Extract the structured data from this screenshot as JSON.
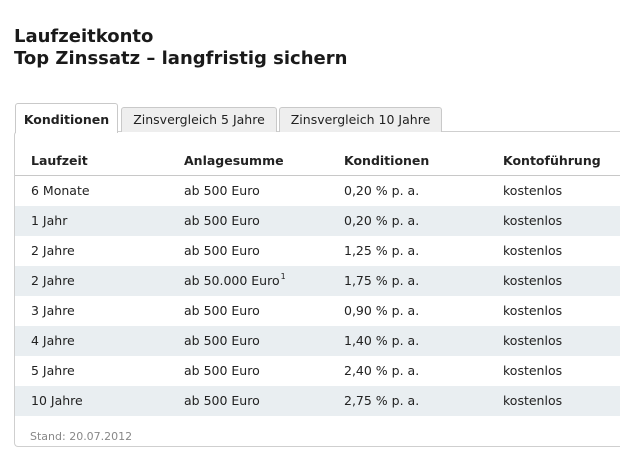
{
  "heading": {
    "line1": "Laufzeitkonto",
    "line2": "Top Zinssatz – langfristig sichern"
  },
  "tabs": [
    {
      "label": "Konditionen",
      "active": true
    },
    {
      "label": "Zinsvergleich 5 Jahre",
      "active": false
    },
    {
      "label": "Zinsvergleich 10 Jahre",
      "active": false
    }
  ],
  "table": {
    "columns": [
      "Laufzeit",
      "Anlagesumme",
      "Konditionen",
      "Kontoführung"
    ],
    "rows": [
      [
        "6 Monate",
        "ab 500 Euro",
        "0,20 % p. a.",
        "kostenlos"
      ],
      [
        "1 Jahr",
        "ab 500 Euro",
        "0,20 % p. a.",
        "kostenlos"
      ],
      [
        "2 Jahre",
        "ab 500 Euro",
        "1,25 % p. a.",
        "kostenlos"
      ],
      [
        "2 Jahre",
        "ab 50.000 Euro",
        "1,75 % p. a.",
        "kostenlos"
      ],
      [
        "3 Jahre",
        "ab 500 Euro",
        "0,90 % p. a.",
        "kostenlos"
      ],
      [
        "4 Jahre",
        "ab 500 Euro",
        "1,40 % p. a.",
        "kostenlos"
      ],
      [
        "5 Jahre",
        "ab 500 Euro",
        "2,40 % p. a.",
        "kostenlos"
      ],
      [
        "10 Jahre",
        "ab 500 Euro",
        "2,75 % p. a.",
        "kostenlos"
      ]
    ],
    "footnote_mark": "1"
  },
  "stand": "Stand: 20.07.2012",
  "colors": {
    "alt_row": "#e9eef1",
    "tab_inactive": "#eeeeee",
    "border": "#c9c9c9"
  }
}
